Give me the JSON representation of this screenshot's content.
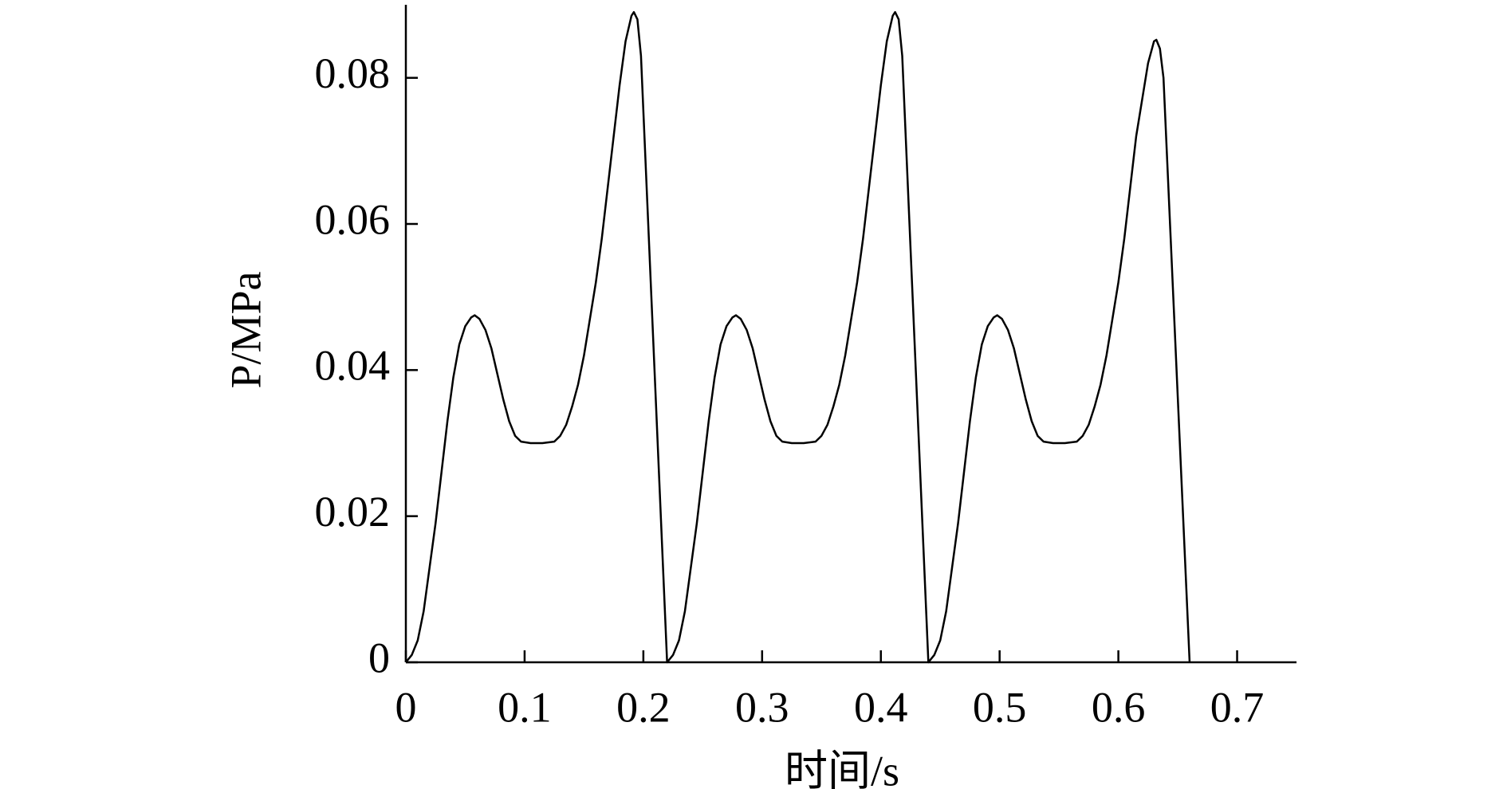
{
  "chart_data": {
    "type": "line",
    "x_label": "时间/s",
    "y_label": "P/MPa",
    "xlim": [
      0,
      0.75
    ],
    "ylim": [
      0,
      0.09
    ],
    "xticks": [
      0,
      0.1,
      0.2,
      0.3,
      0.4,
      0.5,
      0.6,
      0.7
    ],
    "yticks": [
      0,
      0.02,
      0.04,
      0.06,
      0.08
    ],
    "grid": false,
    "x": [
      0,
      0.005,
      0.01,
      0.015,
      0.02,
      0.025,
      0.03,
      0.035,
      0.04,
      0.045,
      0.05,
      0.055,
      0.058,
      0.062,
      0.067,
      0.072,
      0.077,
      0.082,
      0.087,
      0.092,
      0.097,
      0.105,
      0.115,
      0.125,
      0.13,
      0.135,
      0.14,
      0.145,
      0.15,
      0.155,
      0.16,
      0.165,
      0.17,
      0.175,
      0.18,
      0.185,
      0.19,
      0.192,
      0.195,
      0.198,
      0.22,
      0.225,
      0.23,
      0.235,
      0.24,
      0.245,
      0.25,
      0.255,
      0.26,
      0.265,
      0.27,
      0.275,
      0.278,
      0.282,
      0.287,
      0.292,
      0.297,
      0.302,
      0.307,
      0.312,
      0.317,
      0.325,
      0.335,
      0.345,
      0.35,
      0.355,
      0.36,
      0.365,
      0.37,
      0.375,
      0.38,
      0.385,
      0.39,
      0.395,
      0.4,
      0.405,
      0.41,
      0.412,
      0.415,
      0.418,
      0.44,
      0.445,
      0.45,
      0.455,
      0.46,
      0.465,
      0.47,
      0.475,
      0.48,
      0.485,
      0.49,
      0.495,
      0.498,
      0.502,
      0.507,
      0.512,
      0.517,
      0.522,
      0.527,
      0.532,
      0.537,
      0.545,
      0.555,
      0.565,
      0.57,
      0.575,
      0.58,
      0.585,
      0.59,
      0.595,
      0.6,
      0.605,
      0.61,
      0.615,
      0.62,
      0.625,
      0.63,
      0.632,
      0.635,
      0.638,
      0.66
    ],
    "series": [
      {
        "color": "#000000",
        "values": [
          0,
          0.001,
          0.003,
          0.007,
          0.013,
          0.019,
          0.026,
          0.033,
          0.039,
          0.0435,
          0.046,
          0.0472,
          0.0475,
          0.047,
          0.0455,
          0.043,
          0.0395,
          0.036,
          0.033,
          0.031,
          0.0302,
          0.03,
          0.03,
          0.0302,
          0.031,
          0.0325,
          0.035,
          0.038,
          0.042,
          0.047,
          0.052,
          0.058,
          0.065,
          0.072,
          0.079,
          0.085,
          0.0885,
          0.089,
          0.088,
          0.083,
          0,
          0.001,
          0.003,
          0.007,
          0.013,
          0.019,
          0.026,
          0.033,
          0.039,
          0.0435,
          0.046,
          0.0472,
          0.0475,
          0.047,
          0.0455,
          0.043,
          0.0395,
          0.036,
          0.033,
          0.031,
          0.0302,
          0.03,
          0.03,
          0.0302,
          0.031,
          0.0325,
          0.035,
          0.038,
          0.042,
          0.047,
          0.052,
          0.058,
          0.065,
          0.072,
          0.079,
          0.085,
          0.0885,
          0.089,
          0.088,
          0.083,
          0,
          0.001,
          0.003,
          0.007,
          0.013,
          0.019,
          0.026,
          0.033,
          0.039,
          0.0435,
          0.046,
          0.0472,
          0.0475,
          0.047,
          0.0455,
          0.043,
          0.0395,
          0.036,
          0.033,
          0.031,
          0.0302,
          0.03,
          0.03,
          0.0302,
          0.031,
          0.0325,
          0.035,
          0.038,
          0.042,
          0.047,
          0.052,
          0.058,
          0.065,
          0.072,
          0.077,
          0.082,
          0.085,
          0.0852,
          0.084,
          0.08,
          0
        ]
      }
    ]
  }
}
